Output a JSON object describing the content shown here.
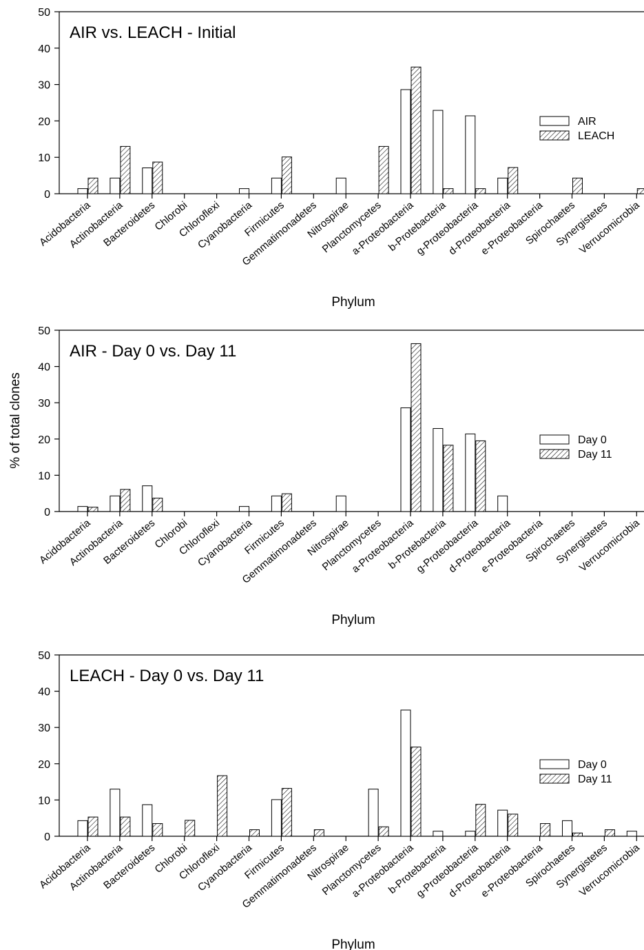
{
  "figure": {
    "ylabel": "% of total clones"
  },
  "chart_data": [
    {
      "type": "bar",
      "title": "AIR vs. LEACH - Initial",
      "xlabel": "Phylum",
      "ylabel": "",
      "ylim": [
        0,
        50
      ],
      "yticks": [
        0,
        10,
        20,
        30,
        40,
        50
      ],
      "legend_position": "right",
      "categories": [
        "Acidobacteria",
        "Actinobacteria",
        "Bacteroidetes",
        "Chlorobi",
        "Chloroflexi",
        "Cyanobacteria",
        "Firmicutes",
        "Gemmatimonadetes",
        "Nitrospirae",
        "Planctomycetes",
        "a-Proteobacteria",
        "b-Protebacteria",
        "g-Proteobacteria",
        "d-Proteobacteria",
        "e-Proteobacteria",
        "Spirochaetes",
        "Synergistetes",
        "Verrucomicrobia"
      ],
      "series": [
        {
          "name": "AIR",
          "values": [
            1.4,
            4.3,
            7.1,
            0,
            0,
            1.4,
            4.3,
            0,
            4.3,
            0,
            28.6,
            22.9,
            21.4,
            4.3,
            0,
            0,
            0,
            0
          ]
        },
        {
          "name": "LEACH",
          "values": [
            4.3,
            13.0,
            8.7,
            0,
            0,
            0,
            10.1,
            0,
            0,
            13.0,
            34.8,
            1.4,
            1.4,
            7.2,
            0,
            4.3,
            0,
            1.4
          ]
        }
      ]
    },
    {
      "type": "bar",
      "title": "AIR - Day 0 vs. Day 11",
      "xlabel": "Phylum",
      "ylabel": "",
      "ylim": [
        0,
        50
      ],
      "yticks": [
        0,
        10,
        20,
        30,
        40,
        50
      ],
      "legend_position": "right",
      "categories": [
        "Acidobacteria",
        "Actinobacteria",
        "Bacteroidetes",
        "Chlorobi",
        "Chloroflexi",
        "Cyanobacteria",
        "Firmicutes",
        "Gemmatimonadetes",
        "Nitrospirae",
        "Planctomycetes",
        "a-Proteobacteria",
        "b-Protebacteria",
        "g-Proteobacteria",
        "d-Proteobacteria",
        "e-Proteobacteria",
        "Spirochaetes",
        "Synergistetes",
        "Verrucomicrobia"
      ],
      "series": [
        {
          "name": "Day 0",
          "values": [
            1.4,
            4.3,
            7.1,
            0,
            0,
            1.4,
            4.3,
            0,
            4.3,
            0,
            28.6,
            22.9,
            21.4,
            4.3,
            0,
            0,
            0,
            0
          ]
        },
        {
          "name": "Day 11",
          "values": [
            1.2,
            6.1,
            3.7,
            0,
            0,
            0,
            4.9,
            0,
            0,
            0,
            46.3,
            18.3,
            19.5,
            0,
            0,
            0,
            0,
            0
          ]
        }
      ]
    },
    {
      "type": "bar",
      "title": "LEACH - Day 0 vs. Day 11",
      "xlabel": "Phylum",
      "ylabel": "",
      "ylim": [
        0,
        50
      ],
      "yticks": [
        0,
        10,
        20,
        30,
        40,
        50
      ],
      "legend_position": "right",
      "categories": [
        "Acidobacteria",
        "Actinobacteria",
        "Bacteroidetes",
        "Chlorobi",
        "Chloroflexi",
        "Cyanobacteria",
        "Firmicutes",
        "Gemmatimonadetes",
        "Nitrospirae",
        "Planctomycetes",
        "a-Proteobacteria",
        "b-Protebacteria",
        "g-Proteobacteria",
        "d-Proteobacteria",
        "e-Proteobacteria",
        "Spirochaetes",
        "Synergistetes",
        "Verrucomicrobia"
      ],
      "series": [
        {
          "name": "Day 0",
          "values": [
            4.3,
            13.0,
            8.7,
            0,
            0,
            0,
            10.1,
            0,
            0,
            13.0,
            34.8,
            1.4,
            1.4,
            7.2,
            0,
            4.3,
            0,
            1.4
          ]
        },
        {
          "name": "Day 11",
          "values": [
            5.3,
            5.3,
            3.5,
            4.4,
            16.7,
            1.8,
            13.2,
            1.8,
            0,
            2.6,
            24.6,
            0,
            8.8,
            6.1,
            3.5,
            0.9,
            1.8,
            0
          ]
        }
      ]
    }
  ]
}
